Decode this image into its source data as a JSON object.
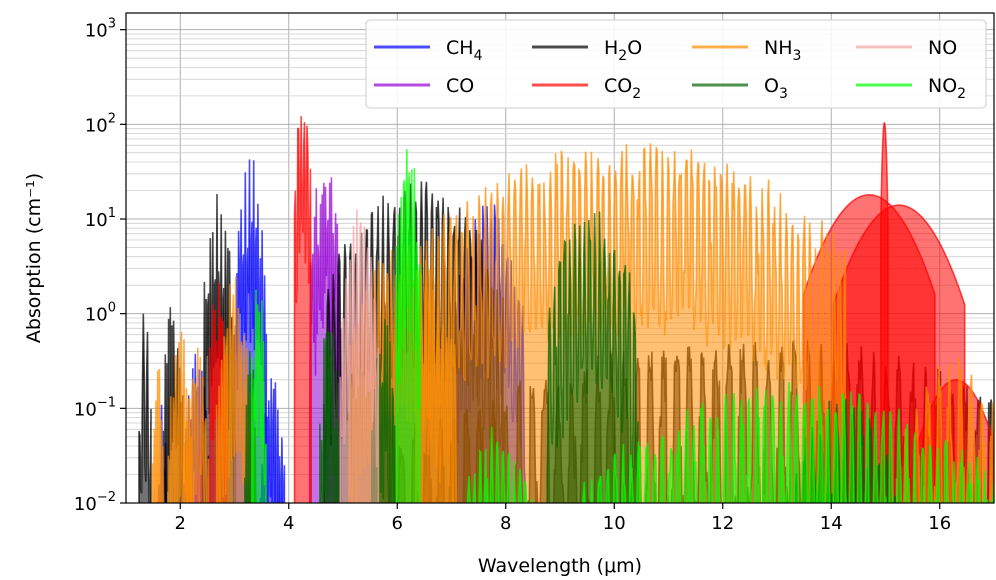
{
  "chart_data": {
    "type": "line",
    "title": "",
    "xlabel": "Wavelength (μm)",
    "ylabel": "Absorption (cm⁻¹)",
    "xlim": [
      1.0,
      17.0
    ],
    "ylim": [
      0.01,
      1500
    ],
    "yscale": "log",
    "grid": true,
    "legend_position": "top-right",
    "x_ticks": [
      2,
      4,
      6,
      8,
      10,
      12,
      14,
      16
    ],
    "x_tick_labels": [
      "2",
      "4",
      "6",
      "8",
      "10",
      "12",
      "14",
      "16"
    ],
    "y_ticks": [
      0.01,
      0.1,
      1,
      10,
      100,
      1000
    ],
    "y_tick_labels": [
      {
        "base": "10",
        "exp": "−2"
      },
      {
        "base": "10",
        "exp": "−1"
      },
      {
        "base": "10",
        "exp": "0"
      },
      {
        "base": "10",
        "exp": "1"
      },
      {
        "base": "10",
        "exp": "2"
      },
      {
        "base": "10",
        "exp": "3"
      }
    ],
    "series": [
      {
        "name": "CH₄",
        "label_main": "CH",
        "label_sub": "4",
        "color": "#0000ff",
        "bands": [
          {
            "center": 1.67,
            "width": 0.04,
            "peak": 0.2,
            "density": 4
          },
          {
            "center": 2.3,
            "width": 0.1,
            "peak": 0.8,
            "density": 6
          },
          {
            "center": 3.3,
            "width": 0.13,
            "peak": 48,
            "density": 8
          },
          {
            "center": 3.7,
            "width": 0.1,
            "peak": 0.3,
            "density": 6
          },
          {
            "center": 7.7,
            "width": 0.3,
            "peak": 18,
            "density": 10
          }
        ]
      },
      {
        "name": "CO",
        "label_main": "CO",
        "label_sub": "",
        "color": "#9400d3",
        "bands": [
          {
            "center": 2.35,
            "width": 0.05,
            "peak": 0.1,
            "density": 5
          },
          {
            "center": 4.67,
            "width": 0.13,
            "peak": 58,
            "density": 9
          }
        ]
      },
      {
        "name": "H₂O",
        "label_main": "H",
        "label_sub": "2",
        "label_tail": "O",
        "color": "#000000",
        "bands": [
          {
            "center": 1.35,
            "width": 0.05,
            "peak": 1.5,
            "density": 6
          },
          {
            "center": 1.87,
            "width": 0.08,
            "peak": 2.2,
            "density": 6
          },
          {
            "center": 2.7,
            "width": 0.13,
            "peak": 20,
            "density": 8
          },
          {
            "center": 6.3,
            "width": 0.75,
            "peak": 28,
            "density": 18
          },
          {
            "center": 12.5,
            "width": 3.0,
            "peak": 0.6,
            "density": 30
          }
        ]
      },
      {
        "name": "CO₂",
        "label_main": "CO",
        "label_sub": "2",
        "color": "#ff0000",
        "bands": [
          {
            "center": 2.7,
            "width": 0.07,
            "peak": 6,
            "density": 4
          },
          {
            "center": 4.26,
            "width": 0.07,
            "peak": 380,
            "density": 3
          },
          {
            "center": 14.7,
            "width": 0.55,
            "peak": 18,
            "density": 1
          },
          {
            "center": 15.25,
            "width": 0.55,
            "peak": 14,
            "density": 1
          },
          {
            "center": 14.98,
            "width": 0.03,
            "peak": 105,
            "density": 1
          },
          {
            "center": 16.3,
            "width": 0.4,
            "peak": 0.2,
            "density": 2
          }
        ]
      },
      {
        "name": "NH₃",
        "label_main": "NH",
        "label_sub": "3",
        "color": "#ff8c00",
        "bands": [
          {
            "center": 1.6,
            "width": 0.05,
            "peak": 0.3,
            "density": 4
          },
          {
            "center": 2.0,
            "width": 0.1,
            "peak": 0.8,
            "density": 5
          },
          {
            "center": 2.3,
            "width": 0.1,
            "peak": 0.6,
            "density": 5
          },
          {
            "center": 3.0,
            "width": 0.15,
            "peak": 2.5,
            "density": 7
          },
          {
            "center": 6.1,
            "width": 0.45,
            "peak": 6,
            "density": 14
          },
          {
            "center": 10.3,
            "width": 1.8,
            "peak": 72,
            "density": 40
          },
          {
            "center": 16.3,
            "width": 0.5,
            "peak": 0.4,
            "density": 6
          }
        ]
      },
      {
        "name": "O₃",
        "label_main": "O",
        "label_sub": "3",
        "color": "#006400",
        "bands": [
          {
            "center": 3.3,
            "width": 0.05,
            "peak": 0.5,
            "density": 4
          },
          {
            "center": 4.75,
            "width": 0.08,
            "peak": 1.5,
            "density": 5
          },
          {
            "center": 5.75,
            "width": 0.1,
            "peak": 1.2,
            "density": 5
          },
          {
            "center": 9.6,
            "width": 0.38,
            "peak": 16,
            "density": 10
          },
          {
            "center": 14.2,
            "width": 0.5,
            "peak": 0.15,
            "density": 8
          }
        ]
      },
      {
        "name": "NO",
        "label_main": "NO",
        "label_sub": "",
        "color": "#f4a6a6",
        "bands": [
          {
            "center": 5.3,
            "width": 0.16,
            "peak": 17,
            "density": 6
          }
        ]
      },
      {
        "name": "NO₂",
        "label_main": "NO",
        "label_sub": "2",
        "color": "#00ff00",
        "bands": [
          {
            "center": 3.45,
            "width": 0.06,
            "peak": 4,
            "density": 4
          },
          {
            "center": 6.2,
            "width": 0.1,
            "peak": 70,
            "density": 5
          },
          {
            "center": 7.8,
            "width": 0.35,
            "peak": 0.08,
            "density": 8
          },
          {
            "center": 13.3,
            "width": 1.8,
            "peak": 0.2,
            "density": 30
          }
        ]
      }
    ]
  }
}
